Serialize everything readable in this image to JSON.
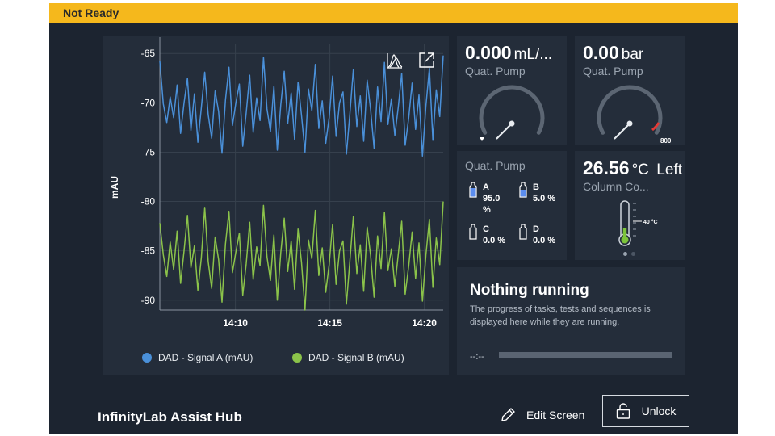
{
  "status": {
    "text": "Not Ready",
    "color": "#f5b81c"
  },
  "chart": {
    "ylabel": "mAU",
    "legend": [
      {
        "label": "DAD - Signal A (mAU)",
        "color": "#4a90d9"
      },
      {
        "label": "DAD - Signal B (mAU)",
        "color": "#8bc34a"
      }
    ],
    "icons": [
      "chart-settings-icon",
      "expand-icon"
    ]
  },
  "chart_data": {
    "type": "line",
    "title": "",
    "xlabel": "",
    "ylabel": "mAU",
    "x_start": "14:06",
    "x_end": "14:21",
    "xticks": [
      "14:10",
      "14:15",
      "14:20"
    ],
    "yticks": [
      -65,
      -70,
      -75,
      -80,
      -85,
      -90
    ],
    "ylim": [
      -91,
      -64
    ],
    "grid": true,
    "legend_position": "bottom",
    "series": [
      {
        "name": "DAD - Signal A (mAU)",
        "color": "#4a90d9",
        "values": [
          -65.8,
          -70.1,
          -72.0,
          -69.4,
          -71.5,
          -68.2,
          -73.1,
          -70.0,
          -67.5,
          -72.8,
          -69.1,
          -74.0,
          -70.5,
          -66.9,
          -71.2,
          -73.6,
          -68.8,
          -70.9,
          -75.1,
          -69.7,
          -66.4,
          -72.3,
          -70.0,
          -68.1,
          -74.4,
          -71.0,
          -67.2,
          -73.0,
          -69.5,
          -71.8,
          -65.4,
          -70.6,
          -72.9,
          -68.3,
          -74.8,
          -70.2,
          -66.8,
          -72.1,
          -69.0,
          -73.7,
          -67.9,
          -71.3,
          -75.0,
          -68.6,
          -70.8,
          -66.1,
          -72.6,
          -69.8,
          -74.1,
          -71.5,
          -67.3,
          -73.4,
          -70.0,
          -68.9,
          -75.2,
          -71.1,
          -66.6,
          -72.4,
          -69.3,
          -73.9,
          -67.7,
          -70.7,
          -74.6,
          -68.4,
          -71.9,
          -65.9,
          -72.2,
          -69.6,
          -73.3,
          -70.4,
          -67.0,
          -74.3,
          -71.6,
          -68.0,
          -72.7,
          -69.2,
          -75.4,
          -70.3,
          -66.5,
          -73.8,
          -68.7,
          -71.4,
          -65.2
        ]
      },
      {
        "name": "DAD - Signal B (mAU)",
        "color": "#8bc34a",
        "values": [
          -82.2,
          -85.4,
          -87.6,
          -84.1,
          -86.9,
          -83.0,
          -88.3,
          -85.0,
          -81.4,
          -86.7,
          -84.5,
          -89.0,
          -85.7,
          -80.6,
          -86.1,
          -88.8,
          -83.6,
          -85.9,
          -90.2,
          -84.3,
          -81.0,
          -87.2,
          -85.1,
          -83.2,
          -89.5,
          -86.3,
          -82.1,
          -87.9,
          -84.6,
          -86.5,
          -80.4,
          -85.6,
          -88.0,
          -83.4,
          -90.0,
          -85.2,
          -81.7,
          -87.1,
          -84.0,
          -88.9,
          -82.8,
          -86.2,
          -91.0,
          -83.9,
          -85.8,
          -80.9,
          -87.5,
          -84.7,
          -89.2,
          -86.4,
          -82.3,
          -88.4,
          -85.0,
          -84.0,
          -90.4,
          -86.0,
          -81.5,
          -87.3,
          -84.4,
          -89.1,
          -82.6,
          -85.5,
          -89.7,
          -83.5,
          -86.8,
          -81.1,
          -87.0,
          -84.8,
          -88.6,
          -85.3,
          -82.0,
          -89.4,
          -86.6,
          -83.1,
          -87.8,
          -84.2,
          -90.1,
          -85.4,
          -81.8,
          -88.7,
          -83.7,
          -86.4,
          -80.0
        ]
      }
    ]
  },
  "flow": {
    "value": "0.000",
    "unit": "mL/...",
    "label": "Quat. Pump",
    "gauge_fraction": 0.0,
    "icon": "arrow-down-icon"
  },
  "pressure": {
    "value": "0.00",
    "unit": "bar",
    "label": "Quat. Pump",
    "gauge_fraction": 0.0,
    "max_label": "800",
    "redline_color": "#e53935"
  },
  "solvents": {
    "title": "Quat. Pump",
    "items": [
      {
        "letter": "A",
        "percent": "95.0",
        "unit": "%",
        "fill": 0.95,
        "icon": "bottle-icon"
      },
      {
        "letter": "B",
        "percent": "5.0",
        "unit": "%",
        "fill": 0.6,
        "icon": "bottle-icon"
      },
      {
        "letter": "C",
        "percent": "0.0",
        "unit": "%",
        "fill": 0.0,
        "icon": "bottle-icon"
      },
      {
        "letter": "D",
        "percent": "0.0",
        "unit": "%",
        "fill": 0.0,
        "icon": "bottle-icon"
      }
    ]
  },
  "column": {
    "value": "26.56",
    "unit": "°C",
    "side": "Left",
    "label": "Column Co...",
    "setpoint": "40 °C",
    "level_fraction": 0.3,
    "icon": "thermometer-icon"
  },
  "pager": {
    "dots": 2,
    "active": 0
  },
  "progress": {
    "title": "Nothing running",
    "description": "The progress of tasks, tests and sequences is displayed here while they are running.",
    "time_text": "--:--",
    "fraction": 0.0
  },
  "footer": {
    "title": "InfinityLab Assist Hub",
    "edit_label": "Edit Screen",
    "unlock_label": "Unlock"
  }
}
